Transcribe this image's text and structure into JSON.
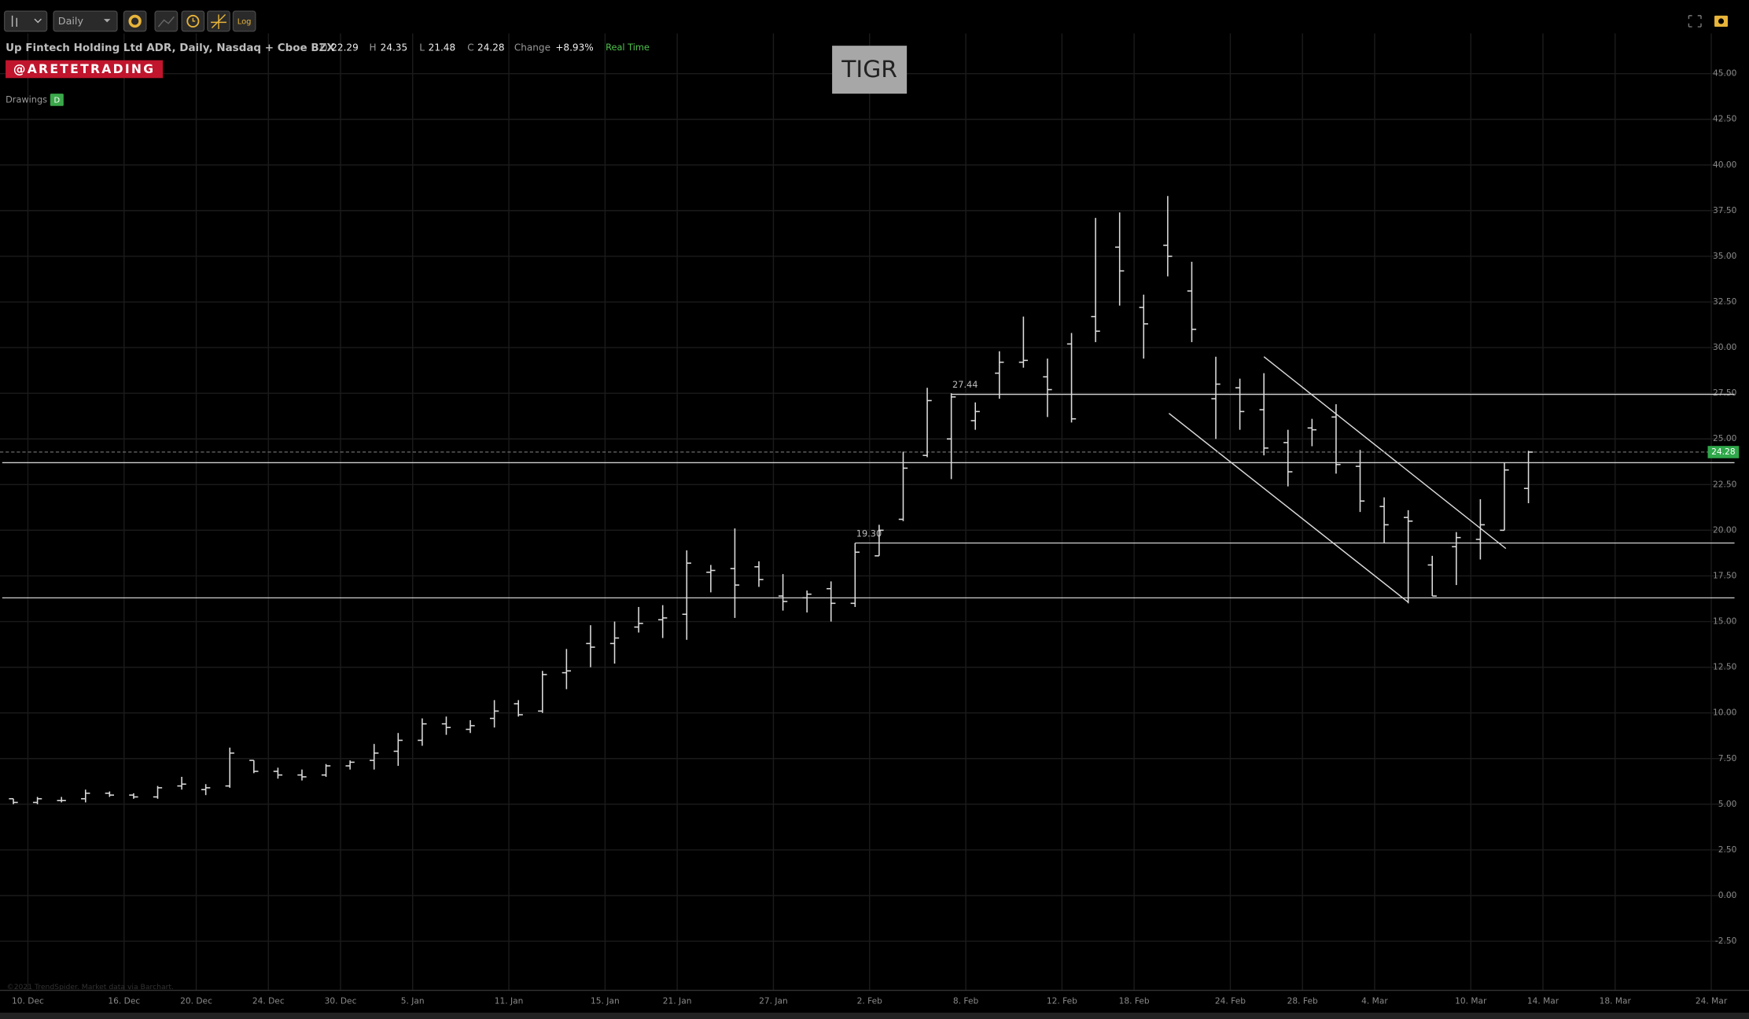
{
  "toolbar": {
    "interval": "Daily",
    "log": "Log"
  },
  "header": {
    "title": "Up Fintech Holding Ltd ADR, Daily, Nasdaq + Cboe BZX",
    "ohlc": [
      {
        "label": "O",
        "value": "22.29"
      },
      {
        "label": "H",
        "value": "24.35"
      },
      {
        "label": "L",
        "value": "21.48"
      },
      {
        "label": "C",
        "value": "24.28"
      },
      {
        "label": "Change",
        "value": "+8.93%"
      }
    ],
    "status": "Real Time"
  },
  "badge": "@ARETETRADING",
  "drawings": {
    "label": "Drawings",
    "badge": "D"
  },
  "symbol_box": "TIGR",
  "footer": "©2021 TrendSpider. Market data via Barchart.",
  "chart_data": {
    "type": "ohlc",
    "color": "#dcdcdc",
    "grid": true,
    "categories": [
      "10. Dec",
      null,
      null,
      null,
      "16. Dec",
      null,
      null,
      "20. Dec",
      null,
      null,
      "24. Dec",
      null,
      null,
      "30. Dec",
      null,
      null,
      "5. Jan",
      null,
      null,
      null,
      "11. Jan",
      null,
      null,
      null,
      "15. Jan",
      null,
      null,
      "21. Jan",
      null,
      null,
      null,
      "27. Jan",
      null,
      null,
      null,
      "2. Feb",
      null,
      null,
      null,
      "8. Feb",
      null,
      null,
      null,
      "12. Feb",
      null,
      null,
      "18. Feb",
      null,
      null,
      null,
      "24. Feb",
      null,
      null,
      "28. Feb",
      null,
      null,
      "4. Mar",
      null,
      null,
      null,
      "10. Mar",
      null,
      null,
      "14. Mar",
      null,
      null,
      "18. Mar",
      null,
      null,
      null,
      "24. Mar",
      null
    ],
    "open": [
      5.3,
      5.1,
      5.2,
      5.3,
      5.6,
      5.5,
      5.4,
      6.0,
      5.8,
      6.0,
      7.4,
      6.8,
      6.6,
      6.6,
      7.1,
      7.4,
      7.9,
      8.5,
      9.4,
      9.1,
      9.7,
      10.5,
      10.1,
      12.2,
      13.8,
      13.8,
      14.7,
      15.1,
      15.4,
      17.7,
      17.9,
      18.0,
      16.4,
      16.3,
      16.8,
      16.0,
      18.6,
      20.6,
      24.1,
      25.0,
      26.0,
      28.6,
      29.2,
      28.4,
      30.2,
      31.7,
      35.5,
      32.2,
      35.6,
      33.1,
      27.2,
      27.8,
      26.6,
      24.8,
      25.6,
      26.2,
      23.5,
      21.3,
      20.7,
      18.1,
      19.1,
      19.5,
      20.0,
      22.29,
      null,
      null,
      null,
      null,
      null,
      null,
      null,
      null
    ],
    "high": [
      5.3,
      5.4,
      5.4,
      5.8,
      5.7,
      5.6,
      6.0,
      6.5,
      6.1,
      8.1,
      7.4,
      7.0,
      6.9,
      7.2,
      7.4,
      8.3,
      8.9,
      9.7,
      9.8,
      9.6,
      10.7,
      10.7,
      12.3,
      13.5,
      14.8,
      15.0,
      15.8,
      15.9,
      18.9,
      18.1,
      20.1,
      18.3,
      17.6,
      16.7,
      17.2,
      19.3,
      20.3,
      24.3,
      27.8,
      27.5,
      27.0,
      29.8,
      31.7,
      29.4,
      30.8,
      37.1,
      37.4,
      32.9,
      38.3,
      34.7,
      29.5,
      28.3,
      28.6,
      25.5,
      26.1,
      26.9,
      24.4,
      21.8,
      21.1,
      18.6,
      19.9,
      21.7,
      23.7,
      24.35,
      null,
      null,
      null,
      null,
      null,
      null,
      null,
      null
    ],
    "low": [
      5.0,
      5.0,
      5.1,
      5.1,
      5.4,
      5.3,
      5.3,
      5.8,
      5.5,
      5.9,
      6.7,
      6.4,
      6.3,
      6.5,
      6.9,
      6.9,
      7.1,
      8.2,
      8.8,
      8.9,
      9.2,
      9.8,
      10.0,
      11.3,
      12.5,
      12.7,
      14.4,
      14.1,
      14.0,
      16.6,
      15.2,
      16.9,
      15.6,
      15.5,
      15.0,
      15.8,
      18.6,
      20.5,
      24.0,
      22.8,
      25.5,
      27.2,
      28.9,
      26.2,
      25.9,
      30.3,
      32.3,
      29.4,
      33.9,
      30.3,
      25.0,
      25.5,
      24.1,
      22.4,
      24.6,
      23.1,
      21.0,
      19.3,
      16.0,
      16.4,
      17.0,
      18.4,
      20.0,
      21.48,
      null,
      null,
      null,
      null,
      null,
      null,
      null,
      null
    ],
    "close": [
      5.1,
      5.3,
      5.2,
      5.6,
      5.5,
      5.4,
      5.9,
      6.1,
      5.9,
      7.8,
      6.8,
      6.6,
      6.5,
      7.1,
      7.3,
      7.8,
      8.5,
      9.4,
      9.2,
      9.3,
      10.1,
      9.9,
      12.1,
      12.3,
      13.6,
      14.1,
      14.9,
      15.2,
      18.2,
      17.8,
      17.0,
      17.3,
      16.1,
      16.5,
      16.0,
      18.8,
      20.0,
      23.4,
      27.1,
      27.3,
      26.5,
      29.2,
      29.3,
      27.7,
      26.1,
      30.9,
      34.2,
      31.3,
      35.0,
      31.0,
      28.0,
      26.5,
      24.5,
      23.2,
      25.5,
      23.6,
      21.6,
      20.3,
      20.5,
      16.4,
      19.6,
      20.3,
      23.3,
      24.28,
      null,
      null,
      null,
      null,
      null,
      null,
      null,
      null
    ],
    "ylim": [
      -5.19,
      47.2
    ],
    "yticks": [
      {
        "value": -2.5,
        "label": "-2.50"
      },
      {
        "value": 0,
        "label": "0.00"
      },
      {
        "value": 2.5,
        "label": "2.50"
      },
      {
        "value": 5,
        "label": "5.00"
      },
      {
        "value": 7.5,
        "label": "7.50"
      },
      {
        "value": 10,
        "label": "10.00"
      },
      {
        "value": 12.5,
        "label": "12.50"
      },
      {
        "value": 15,
        "label": "15.00"
      },
      {
        "value": 17.5,
        "label": "17.50"
      },
      {
        "value": 20,
        "label": "20.00"
      },
      {
        "value": 22.5,
        "label": "22.50"
      },
      {
        "value": 25,
        "label": "25.00"
      },
      {
        "value": 27.5,
        "label": "27.50"
      },
      {
        "value": 30,
        "label": "30.00"
      },
      {
        "value": 32.5,
        "label": "32.50"
      },
      {
        "value": 35,
        "label": "35.00"
      },
      {
        "value": 37.5,
        "label": "37.50"
      },
      {
        "value": 40,
        "label": "40.00"
      },
      {
        "value": 42.5,
        "label": "42.50"
      },
      {
        "value": 45,
        "label": "45.00"
      }
    ],
    "hlines": [
      {
        "value": 27.44,
        "label": "27.44",
        "from": 39
      },
      {
        "value": 19.3,
        "label": "19.30",
        "from": 35
      },
      {
        "value": 23.7
      },
      {
        "value": 16.3
      }
    ],
    "trendlines": [
      {
        "x": [
          48.05,
          58.0
        ],
        "y": [
          26.4,
          16.06
        ]
      },
      {
        "x": [
          52.0,
          62.06
        ],
        "y": [
          29.5,
          19.0
        ]
      }
    ],
    "last_price": {
      "value": 24.28,
      "label": "24.28"
    }
  }
}
